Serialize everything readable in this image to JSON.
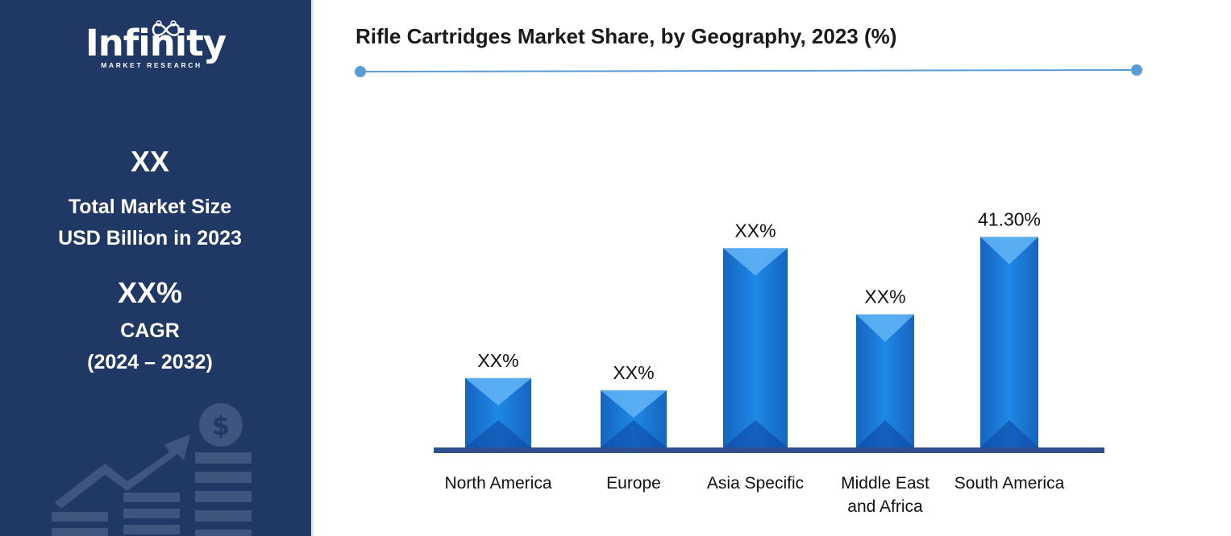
{
  "sidebar": {
    "logo": {
      "word": "Infinity",
      "subtitle": "MARKET RESEARCH"
    },
    "market_size": {
      "value": "XX",
      "line1": "Total Market Size",
      "line2": "USD Billion in 2023"
    },
    "cagr": {
      "value": "XX%",
      "line1": "CAGR",
      "line2": "(2024 – 2032)"
    },
    "background_color": "#1f3864"
  },
  "chart_data": {
    "type": "bar",
    "title": "Rifle Cartridges Market Share, by Geography, 2023 (%)",
    "categories": [
      "North America",
      "Europe",
      "Asia Specific",
      "Middle East and Africa",
      "South America"
    ],
    "category_lines": [
      [
        "North America"
      ],
      [
        "Europe"
      ],
      [
        "Asia Specific"
      ],
      [
        "Middle East",
        "and Africa"
      ],
      [
        "South America"
      ]
    ],
    "values": [
      13.6,
      11.2,
      39.1,
      26.1,
      41.3
    ],
    "data_labels": [
      "XX%",
      "XX%",
      "XX%",
      "XX%",
      "41.30%"
    ],
    "ylim": [
      0,
      45
    ],
    "xlabel": "",
    "ylabel": "",
    "bar_color": "#1f7ad6",
    "axis_color": "#2f4f8f",
    "grid": false
  }
}
